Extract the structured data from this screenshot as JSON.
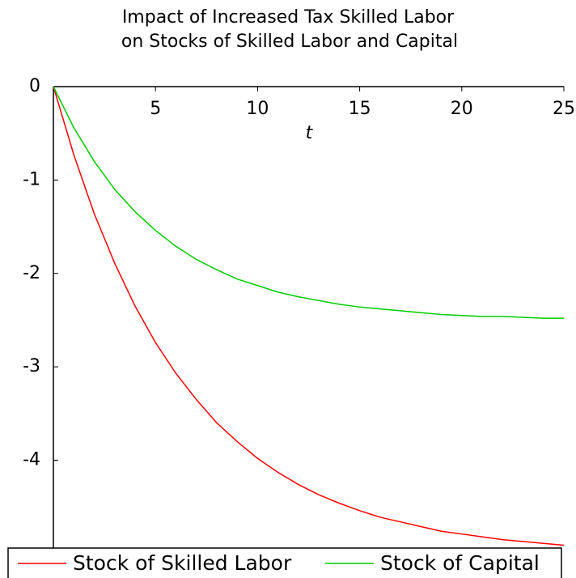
{
  "chart_data": {
    "type": "line",
    "title": [
      "Impact of Increased Tax Skilled Labor",
      "on Stocks of Skilled Labor and Capital"
    ],
    "x_label": "t",
    "x": [
      0,
      1,
      2,
      3,
      4,
      5,
      6,
      7,
      8,
      9,
      10,
      11,
      12,
      13,
      14,
      15,
      16,
      17,
      18,
      19,
      20,
      21,
      22,
      23,
      24,
      25
    ],
    "series": [
      {
        "name": "Stock of Skilled Labor",
        "color": "#ff0000",
        "values": [
          0,
          -0.73,
          -1.36,
          -1.89,
          -2.35,
          -2.74,
          -3.07,
          -3.35,
          -3.6,
          -3.8,
          -3.98,
          -4.13,
          -4.26,
          -4.37,
          -4.46,
          -4.54,
          -4.61,
          -4.66,
          -4.71,
          -4.76,
          -4.79,
          -4.82,
          -4.85,
          -4.87,
          -4.89,
          -4.91
        ]
      },
      {
        "name": "Stock of Capital",
        "color": "#00cc00",
        "values": [
          0,
          -0.44,
          -0.8,
          -1.1,
          -1.34,
          -1.54,
          -1.71,
          -1.85,
          -1.96,
          -2.06,
          -2.13,
          -2.2,
          -2.25,
          -2.29,
          -2.33,
          -2.36,
          -2.38,
          -2.4,
          -2.42,
          -2.44,
          -2.45,
          -2.46,
          -2.46,
          -2.47,
          -2.48,
          -2.48
        ]
      }
    ],
    "xlim": [
      0,
      25
    ],
    "xticks": [
      5,
      10,
      15,
      20,
      25
    ],
    "ylim": [
      -4.94,
      0
    ],
    "yticks": [
      0,
      -1,
      -2,
      -3,
      -4
    ],
    "legend": "bottom"
  }
}
